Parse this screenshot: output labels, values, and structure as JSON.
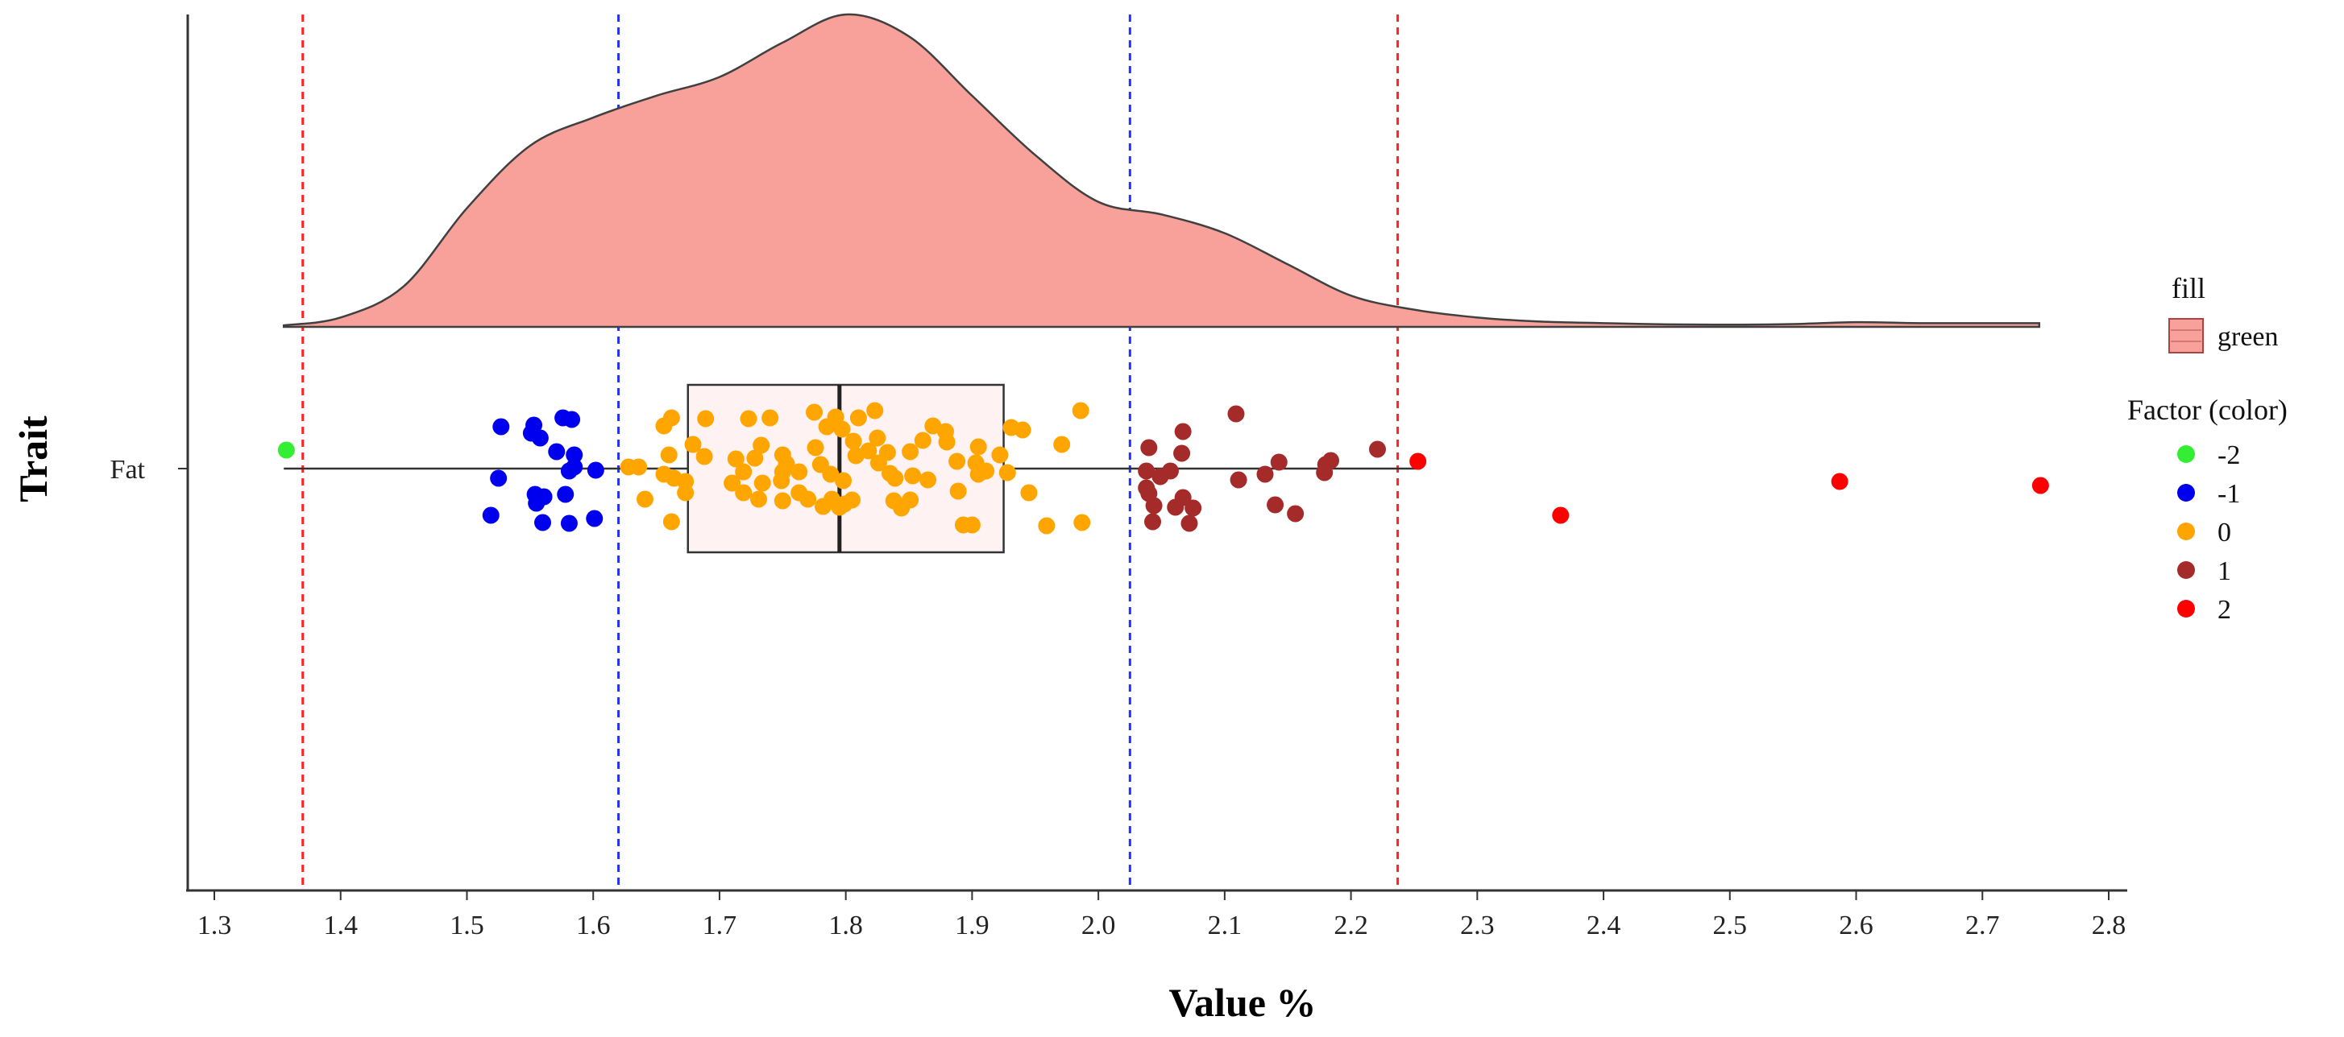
{
  "chart_data": {
    "type": "raincloud",
    "title": "",
    "xlabel": "Value %",
    "ylabel": "Trait",
    "xlim": [
      1.28,
      2.82
    ],
    "x_ticks": [
      "1.3",
      "1.4",
      "1.5",
      "1.6",
      "1.7",
      "1.8",
      "1.9",
      "2.0",
      "2.1",
      "2.2",
      "2.3",
      "2.4",
      "2.5",
      "2.6",
      "2.7",
      "2.8"
    ],
    "categories": [
      "Fat"
    ],
    "grid": false,
    "legend_position": "right",
    "density": {
      "fill": "#f8a19a",
      "stroke": "#404040",
      "x": [
        1.355,
        1.4,
        1.45,
        1.5,
        1.55,
        1.6,
        1.65,
        1.7,
        1.75,
        1.8,
        1.85,
        1.9,
        1.95,
        2.0,
        2.05,
        2.1,
        2.15,
        2.2,
        2.25,
        2.3,
        2.35,
        2.4,
        2.45,
        2.5,
        2.55,
        2.6,
        2.65,
        2.7,
        2.745
      ],
      "y": [
        0.005,
        0.03,
        0.13,
        0.38,
        0.58,
        0.67,
        0.74,
        0.8,
        0.91,
        1.0,
        0.93,
        0.74,
        0.55,
        0.4,
        0.36,
        0.3,
        0.2,
        0.1,
        0.055,
        0.03,
        0.017,
        0.012,
        0.008,
        0.007,
        0.009,
        0.015,
        0.012,
        0.012,
        0.012
      ]
    },
    "boxplot": {
      "whisker_low": 1.355,
      "q1": 1.675,
      "median": 1.795,
      "q3": 1.925,
      "whisker_high": 2.255,
      "fill": "#fff0f0",
      "stroke": "#333333"
    },
    "reference_lines": [
      {
        "x": 1.37,
        "color": "#ff2222"
      },
      {
        "x": 1.62,
        "color": "#2233ff"
      },
      {
        "x": 2.025,
        "color": "#2233ff"
      },
      {
        "x": 2.237,
        "color": "#ff2222"
      }
    ],
    "fill_legend": {
      "title": "fill",
      "label": "green",
      "color": "#f8a19a"
    },
    "color_legend": {
      "title": "Factor (color)",
      "entries": [
        {
          "label": "-2",
          "color": "#33ee33"
        },
        {
          "label": "-1",
          "color": "#0000ee"
        },
        {
          "label": "0",
          "color": "#ffa500"
        },
        {
          "label": "1",
          "color": "#a52a2a"
        },
        {
          "label": "2",
          "color": "#ff0000"
        }
      ]
    },
    "points": [
      {
        "x": 1.357,
        "j": 0.23,
        "f": "-2"
      },
      {
        "x": 1.527,
        "j": 0.52,
        "f": "-1"
      },
      {
        "x": 1.553,
        "j": 0.54,
        "f": "-1"
      },
      {
        "x": 1.576,
        "j": 0.63,
        "f": "-1"
      },
      {
        "x": 1.583,
        "j": 0.61,
        "f": "-1"
      },
      {
        "x": 1.551,
        "j": 0.44,
        "f": "-1"
      },
      {
        "x": 1.558,
        "j": 0.38,
        "f": "-1"
      },
      {
        "x": 1.571,
        "j": 0.21,
        "f": "-1"
      },
      {
        "x": 1.585,
        "j": 0.17,
        "f": "-1"
      },
      {
        "x": 1.602,
        "j": -0.02,
        "f": "-1"
      },
      {
        "x": 1.581,
        "j": -0.03,
        "f": "-1"
      },
      {
        "x": 1.585,
        "j": 0.02,
        "f": "-1"
      },
      {
        "x": 1.525,
        "j": -0.12,
        "f": "-1"
      },
      {
        "x": 1.554,
        "j": -0.32,
        "f": "-1"
      },
      {
        "x": 1.561,
        "j": -0.35,
        "f": "-1"
      },
      {
        "x": 1.578,
        "j": -0.32,
        "f": "-1"
      },
      {
        "x": 1.555,
        "j": -0.43,
        "f": "-1"
      },
      {
        "x": 1.519,
        "j": -0.58,
        "f": "-1"
      },
      {
        "x": 1.56,
        "j": -0.67,
        "f": "-1"
      },
      {
        "x": 1.581,
        "j": -0.68,
        "f": "-1"
      },
      {
        "x": 1.601,
        "j": -0.62,
        "f": "-1"
      },
      {
        "x": 1.662,
        "j": 0.63,
        "f": "0"
      },
      {
        "x": 1.689,
        "j": 0.62,
        "f": "0"
      },
      {
        "x": 1.723,
        "j": 0.62,
        "f": "0"
      },
      {
        "x": 1.74,
        "j": 0.63,
        "f": "0"
      },
      {
        "x": 1.775,
        "j": 0.7,
        "f": "0"
      },
      {
        "x": 1.792,
        "j": 0.64,
        "f": "0"
      },
      {
        "x": 1.81,
        "j": 0.63,
        "f": "0"
      },
      {
        "x": 1.823,
        "j": 0.72,
        "f": "0"
      },
      {
        "x": 1.986,
        "j": 0.72,
        "f": "0"
      },
      {
        "x": 1.656,
        "j": 0.53,
        "f": "0"
      },
      {
        "x": 1.785,
        "j": 0.52,
        "f": "0"
      },
      {
        "x": 1.797,
        "j": 0.49,
        "f": "0"
      },
      {
        "x": 1.869,
        "j": 0.53,
        "f": "0"
      },
      {
        "x": 1.879,
        "j": 0.46,
        "f": "0"
      },
      {
        "x": 1.931,
        "j": 0.51,
        "f": "0"
      },
      {
        "x": 1.94,
        "j": 0.48,
        "f": "0"
      },
      {
        "x": 1.825,
        "j": 0.38,
        "f": "0"
      },
      {
        "x": 1.806,
        "j": 0.34,
        "f": "0"
      },
      {
        "x": 1.861,
        "j": 0.35,
        "f": "0"
      },
      {
        "x": 1.88,
        "j": 0.33,
        "f": "0"
      },
      {
        "x": 1.679,
        "j": 0.3,
        "f": "0"
      },
      {
        "x": 1.733,
        "j": 0.29,
        "f": "0"
      },
      {
        "x": 1.776,
        "j": 0.26,
        "f": "0"
      },
      {
        "x": 1.905,
        "j": 0.27,
        "f": "0"
      },
      {
        "x": 1.971,
        "j": 0.3,
        "f": "0"
      },
      {
        "x": 1.818,
        "j": 0.22,
        "f": "0"
      },
      {
        "x": 1.833,
        "j": 0.2,
        "f": "0"
      },
      {
        "x": 1.851,
        "j": 0.21,
        "f": "0"
      },
      {
        "x": 1.66,
        "j": 0.17,
        "f": "0"
      },
      {
        "x": 1.688,
        "j": 0.15,
        "f": "0"
      },
      {
        "x": 1.713,
        "j": 0.12,
        "f": "0"
      },
      {
        "x": 1.728,
        "j": 0.13,
        "f": "0"
      },
      {
        "x": 1.75,
        "j": 0.17,
        "f": "0"
      },
      {
        "x": 1.808,
        "j": 0.16,
        "f": "0"
      },
      {
        "x": 1.922,
        "j": 0.17,
        "f": "0"
      },
      {
        "x": 1.636,
        "j": 0.02,
        "f": "0"
      },
      {
        "x": 1.628,
        "j": 0.02,
        "f": "0"
      },
      {
        "x": 1.753,
        "j": 0.06,
        "f": "0"
      },
      {
        "x": 1.78,
        "j": 0.05,
        "f": "0"
      },
      {
        "x": 1.826,
        "j": 0.07,
        "f": "0"
      },
      {
        "x": 1.888,
        "j": 0.09,
        "f": "0"
      },
      {
        "x": 1.903,
        "j": 0.07,
        "f": "0"
      },
      {
        "x": 1.656,
        "j": -0.07,
        "f": "0"
      },
      {
        "x": 1.719,
        "j": -0.04,
        "f": "0"
      },
      {
        "x": 1.75,
        "j": -0.04,
        "f": "0"
      },
      {
        "x": 1.763,
        "j": -0.04,
        "f": "0"
      },
      {
        "x": 1.788,
        "j": -0.07,
        "f": "0"
      },
      {
        "x": 1.835,
        "j": -0.06,
        "f": "0"
      },
      {
        "x": 1.853,
        "j": -0.09,
        "f": "0"
      },
      {
        "x": 1.905,
        "j": -0.07,
        "f": "0"
      },
      {
        "x": 1.911,
        "j": -0.03,
        "f": "0"
      },
      {
        "x": 1.928,
        "j": -0.05,
        "f": "0"
      },
      {
        "x": 1.664,
        "j": -0.12,
        "f": "0"
      },
      {
        "x": 1.673,
        "j": -0.16,
        "f": "0"
      },
      {
        "x": 1.71,
        "j": -0.18,
        "f": "0"
      },
      {
        "x": 1.734,
        "j": -0.18,
        "f": "0"
      },
      {
        "x": 1.749,
        "j": -0.15,
        "f": "0"
      },
      {
        "x": 1.798,
        "j": -0.15,
        "f": "0"
      },
      {
        "x": 1.839,
        "j": -0.12,
        "f": "0"
      },
      {
        "x": 1.865,
        "j": -0.14,
        "f": "0"
      },
      {
        "x": 1.673,
        "j": -0.3,
        "f": "0"
      },
      {
        "x": 1.719,
        "j": -0.3,
        "f": "0"
      },
      {
        "x": 1.763,
        "j": -0.3,
        "f": "0"
      },
      {
        "x": 1.889,
        "j": -0.28,
        "f": "0"
      },
      {
        "x": 1.945,
        "j": -0.3,
        "f": "0"
      },
      {
        "x": 1.641,
        "j": -0.38,
        "f": "0"
      },
      {
        "x": 1.731,
        "j": -0.38,
        "f": "0"
      },
      {
        "x": 1.75,
        "j": -0.4,
        "f": "0"
      },
      {
        "x": 1.77,
        "j": -0.38,
        "f": "0"
      },
      {
        "x": 1.789,
        "j": -0.38,
        "f": "0"
      },
      {
        "x": 1.805,
        "j": -0.39,
        "f": "0"
      },
      {
        "x": 1.838,
        "j": -0.4,
        "f": "0"
      },
      {
        "x": 1.851,
        "j": -0.39,
        "f": "0"
      },
      {
        "x": 1.782,
        "j": -0.47,
        "f": "0"
      },
      {
        "x": 1.795,
        "j": -0.48,
        "f": "0"
      },
      {
        "x": 1.844,
        "j": -0.49,
        "f": "0"
      },
      {
        "x": 1.799,
        "j": -0.44,
        "f": "0"
      },
      {
        "x": 1.662,
        "j": -0.66,
        "f": "0"
      },
      {
        "x": 1.893,
        "j": -0.7,
        "f": "0"
      },
      {
        "x": 1.9,
        "j": -0.7,
        "f": "0"
      },
      {
        "x": 1.959,
        "j": -0.71,
        "f": "0"
      },
      {
        "x": 1.987,
        "j": -0.67,
        "f": "0"
      },
      {
        "x": 2.109,
        "j": 0.68,
        "f": "1"
      },
      {
        "x": 2.067,
        "j": 0.46,
        "f": "1"
      },
      {
        "x": 2.04,
        "j": 0.26,
        "f": "1"
      },
      {
        "x": 2.066,
        "j": 0.19,
        "f": "1"
      },
      {
        "x": 2.221,
        "j": 0.24,
        "f": "1"
      },
      {
        "x": 2.143,
        "j": 0.08,
        "f": "1"
      },
      {
        "x": 2.18,
        "j": 0.05,
        "f": "1"
      },
      {
        "x": 2.184,
        "j": 0.1,
        "f": "1"
      },
      {
        "x": 2.057,
        "j": -0.03,
        "f": "1"
      },
      {
        "x": 2.038,
        "j": -0.03,
        "f": "1"
      },
      {
        "x": 2.132,
        "j": -0.07,
        "f": "1"
      },
      {
        "x": 2.179,
        "j": -0.05,
        "f": "1"
      },
      {
        "x": 2.049,
        "j": -0.1,
        "f": "1"
      },
      {
        "x": 2.111,
        "j": -0.14,
        "f": "1"
      },
      {
        "x": 2.038,
        "j": -0.24,
        "f": "1"
      },
      {
        "x": 2.04,
        "j": -0.31,
        "f": "1"
      },
      {
        "x": 2.067,
        "j": -0.36,
        "f": "1"
      },
      {
        "x": 2.044,
        "j": -0.46,
        "f": "1"
      },
      {
        "x": 2.061,
        "j": -0.48,
        "f": "1"
      },
      {
        "x": 2.075,
        "j": -0.49,
        "f": "1"
      },
      {
        "x": 2.14,
        "j": -0.45,
        "f": "1"
      },
      {
        "x": 2.156,
        "j": -0.56,
        "f": "1"
      },
      {
        "x": 2.043,
        "j": -0.66,
        "f": "1"
      },
      {
        "x": 2.072,
        "j": -0.68,
        "f": "1"
      },
      {
        "x": 2.253,
        "j": 0.09,
        "f": "2"
      },
      {
        "x": 2.366,
        "j": -0.58,
        "f": "2"
      },
      {
        "x": 2.587,
        "j": -0.16,
        "f": "2"
      },
      {
        "x": 2.746,
        "j": -0.21,
        "f": "2"
      }
    ]
  }
}
